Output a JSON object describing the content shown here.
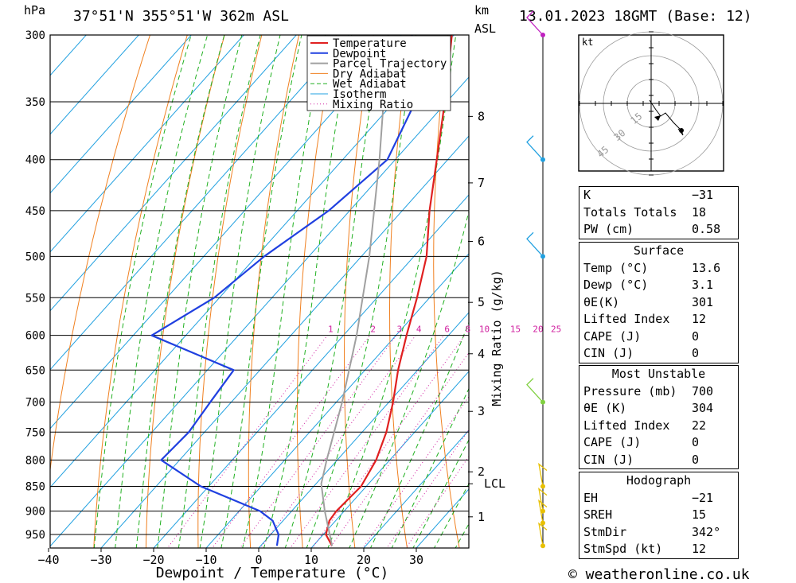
{
  "header": {
    "pressure_unit": "hPa",
    "location": "37°51'N  355°51'W  362m  ASL",
    "height_unit": "km",
    "height_ref": "ASL",
    "datetime": "13.01.2023  18GMT  (Base: 12)"
  },
  "footer": {
    "copyright": "© weatheronline.co.uk"
  },
  "chart_data": {
    "type": "line",
    "title": "",
    "xlabel": "Dewpoint / Temperature (°C)",
    "ylabel": "hPa",
    "right_axis_label": "Mixing Ratio (g/kg)",
    "skew": true,
    "log_pressure_axis": true,
    "xlim": [
      -40,
      40
    ],
    "ylim": [
      980,
      300
    ],
    "x_ticks": [
      -40,
      -30,
      -20,
      -10,
      0,
      10,
      20,
      30
    ],
    "x_tick_labels": [
      "−40",
      "−30",
      "−20",
      "−10",
      "0",
      "10",
      "20",
      "30"
    ],
    "pressure_levels": [
      300,
      350,
      400,
      450,
      500,
      550,
      600,
      650,
      700,
      750,
      800,
      850,
      900,
      950
    ],
    "height_ticks": [
      {
        "label": "8",
        "p": 362
      },
      {
        "label": "7",
        "p": 422
      },
      {
        "label": "6",
        "p": 483
      },
      {
        "label": "5",
        "p": 556
      },
      {
        "label": "4",
        "p": 626
      },
      {
        "label": "3",
        "p": 715
      },
      {
        "label": "2",
        "p": 822
      },
      {
        "label": "LCL",
        "p": 845
      },
      {
        "label": "1",
        "p": 912
      }
    ],
    "mixing_ratio_lines": [
      1,
      2,
      3,
      4,
      6,
      8,
      10,
      15,
      20,
      25
    ],
    "mixing_ratio_labels": [
      "1",
      "2",
      "3",
      "4",
      "6",
      "8",
      "10",
      "15",
      "20",
      "25"
    ],
    "legend": {
      "placement": "top-center",
      "entries": [
        "Temperature",
        "Dewpoint",
        "Parcel Trajectory",
        "Dry Adiabat",
        "Wet Adiabat",
        "Isotherm",
        "Mixing Ratio"
      ]
    },
    "series": [
      {
        "name": "Temperature",
        "color": "#e02020",
        "points": [
          [
            975,
            13.6
          ],
          [
            950,
            10.5
          ],
          [
            920,
            8.8
          ],
          [
            900,
            8.5
          ],
          [
            850,
            9.0
          ],
          [
            800,
            7.4
          ],
          [
            750,
            4.6
          ],
          [
            700,
            0.8
          ],
          [
            650,
            -3.7
          ],
          [
            600,
            -8.0
          ],
          [
            550,
            -12.4
          ],
          [
            500,
            -17.6
          ],
          [
            450,
            -24.8
          ],
          [
            400,
            -32.1
          ],
          [
            350,
            -40.4
          ],
          [
            300,
            -50.4
          ]
        ]
      },
      {
        "name": "Dewpoint",
        "color": "#2040e0",
        "points": [
          [
            975,
            3.1
          ],
          [
            950,
            1.5
          ],
          [
            920,
            -2.0
          ],
          [
            900,
            -6.0
          ],
          [
            850,
            -21.5
          ],
          [
            800,
            -33.5
          ],
          [
            750,
            -33.0
          ],
          [
            700,
            -34.0
          ],
          [
            650,
            -35.0
          ],
          [
            600,
            -56.5
          ],
          [
            550,
            -51.0
          ],
          [
            500,
            -48.5
          ],
          [
            450,
            -44.0
          ],
          [
            400,
            -41.5
          ],
          [
            350,
            -46.0
          ],
          [
            300,
            -58.0
          ]
        ]
      },
      {
        "name": "Parcel Trajectory",
        "color": "#a0a0a0",
        "points": [
          [
            975,
            13.6
          ],
          [
            900,
            6.3
          ],
          [
            845,
            1.0
          ],
          [
            800,
            -2.0
          ],
          [
            700,
            -8.9
          ],
          [
            600,
            -17.5
          ],
          [
            500,
            -28.5
          ],
          [
            400,
            -43.0
          ],
          [
            300,
            -62.5
          ]
        ]
      }
    ],
    "hodograph": {
      "unit": "kt",
      "rings": [
        15,
        30,
        45
      ],
      "ring_labels": [
        "15",
        "30",
        "45"
      ],
      "trace": [
        [
          -1,
          2
        ],
        [
          1,
          -1
        ],
        [
          3,
          -4
        ],
        [
          6,
          -8
        ],
        [
          9,
          -6
        ],
        [
          14,
          -12
        ],
        [
          19,
          -17
        ],
        [
          20,
          -20
        ],
        [
          17,
          -16
        ]
      ]
    },
    "wind_barbs": [
      {
        "p": 300,
        "color": "#c020c0"
      },
      {
        "p": 400,
        "color": "#20a0e0"
      },
      {
        "p": 500,
        "color": "#20a0e0"
      },
      {
        "p": 700,
        "color": "#80d040"
      },
      {
        "p": 850,
        "color": "#e8c000"
      },
      {
        "p": 900,
        "color": "#e8c000"
      },
      {
        "p": 925,
        "color": "#e8c000"
      },
      {
        "p": 975,
        "color": "#e8c000"
      }
    ]
  },
  "indices": {
    "k": {
      "label": "K",
      "value": "−31"
    },
    "tt": {
      "label": "Totals Totals",
      "value": "18"
    },
    "pw": {
      "label": "PW (cm)",
      "value": "0.58"
    }
  },
  "surface": {
    "title": "Surface",
    "rows": [
      {
        "label": "Temp (°C)",
        "value": "13.6"
      },
      {
        "label": "Dewp (°C)",
        "value": "3.1"
      },
      {
        "label": "θE(K)",
        "value": "301"
      },
      {
        "label": "Lifted Index",
        "value": "12"
      },
      {
        "label": "CAPE (J)",
        "value": "0"
      },
      {
        "label": "CIN (J)",
        "value": "0"
      }
    ]
  },
  "most_unstable": {
    "title": "Most Unstable",
    "rows": [
      {
        "label": "Pressure (mb)",
        "value": "700"
      },
      {
        "label": "θE (K)",
        "value": "304"
      },
      {
        "label": "Lifted Index",
        "value": "22"
      },
      {
        "label": "CAPE (J)",
        "value": "0"
      },
      {
        "label": "CIN (J)",
        "value": "0"
      }
    ]
  },
  "hodograph_table": {
    "title": "Hodograph",
    "rows": [
      {
        "label": "EH",
        "value": "−21"
      },
      {
        "label": "SREH",
        "value": "15"
      },
      {
        "label": "StmDir",
        "value": "342°"
      },
      {
        "label": "StmSpd (kt)",
        "value": "12"
      }
    ]
  },
  "colors": {
    "temperature": "#e02020",
    "dewpoint": "#2040e0",
    "parcel": "#a0a0a0",
    "dry_adiabat": "#f08020",
    "wet_adiabat": "#20b020",
    "isotherm": "#20a0e0",
    "mixing_ratio": "#d020a0"
  }
}
